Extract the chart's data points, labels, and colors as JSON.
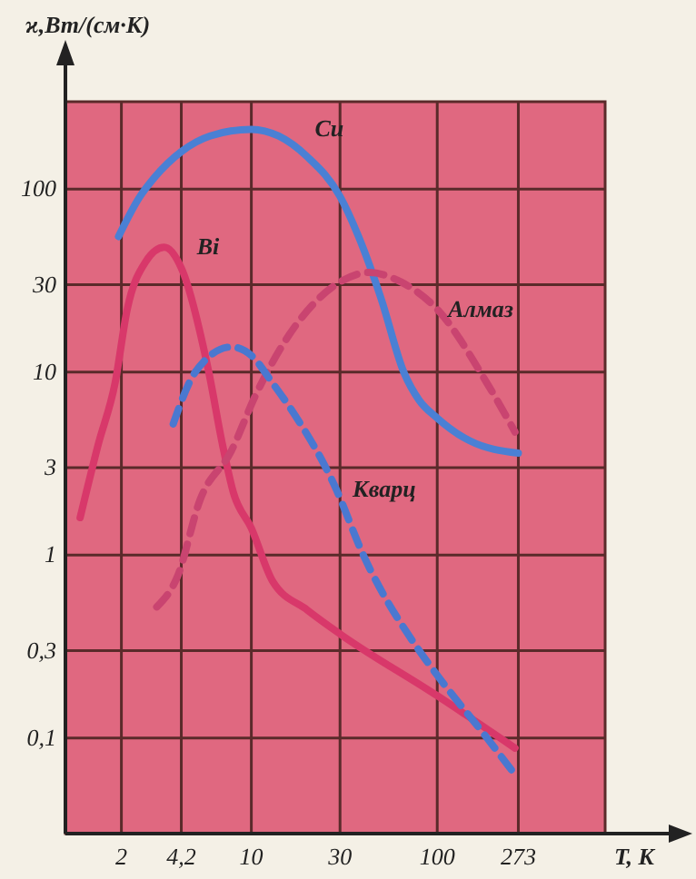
{
  "chart_data": {
    "type": "line",
    "xlabel": "T, K",
    "ylabel": "ϰ,Вт/(см·К)",
    "log": "xy",
    "grid": true,
    "marker": "none",
    "xlim": [
      1,
      800
    ],
    "ylim": [
      0.03,
      300
    ],
    "xticks": [
      2,
      {
        "value": 4.2,
        "label": "4,2"
      },
      10,
      30,
      100,
      273
    ],
    "yticks": [
      {
        "value": 0.1,
        "label": "0,1"
      },
      {
        "value": 0.3,
        "label": "0,3"
      },
      1,
      3,
      10,
      30,
      100
    ],
    "series": [
      {
        "name": "Cu",
        "color": "#4a80d4",
        "line_style": "solid",
        "x": [
          1.93,
          2.5,
          3,
          4.2,
          6,
          10,
          14,
          20,
          30,
          38,
          50,
          66,
          80,
          100,
          150,
          273
        ],
        "values": [
          55,
          90,
          115,
          160,
          195,
          212,
          195,
          150,
          91,
          54,
          25,
          10,
          7,
          5.6,
          4.2,
          3.6
        ]
      },
      {
        "name": "Bi",
        "color": "#d8386a",
        "line_style": "solid",
        "x": [
          1.2,
          1.5,
          1.85,
          2.15,
          2.7,
          3.4,
          4.2,
          5.9,
          7,
          8,
          10,
          13,
          20,
          30,
          100,
          262
        ],
        "values": [
          1.6,
          4,
          8.7,
          22,
          40,
          48,
          37,
          10,
          4,
          2.2,
          1.4,
          0.72,
          0.5,
          0.37,
          0.17,
          0.088
        ]
      },
      {
        "name": "Алмаз",
        "color": "#c94470",
        "line_style": "dashed",
        "x": [
          3.1,
          4,
          5.3,
          7.8,
          10.5,
          16,
          30,
          43,
          64,
          100,
          185,
          262
        ],
        "values": [
          0.52,
          0.76,
          2,
          3.7,
          7.4,
          16,
          31,
          35,
          31,
          22,
          8.7,
          4.7
        ]
      },
      {
        "name": "Кварц",
        "color": "#4a78d0",
        "line_style": "dashed",
        "x": [
          3.8,
          5,
          7.8,
          10,
          13,
          17,
          28,
          40,
          80,
          100,
          185,
          262
        ],
        "values": [
          5.2,
          10,
          13.7,
          12.3,
          8.7,
          5.9,
          2.4,
          1.0,
          0.3,
          0.22,
          0.1,
          0.063
        ]
      }
    ]
  }
}
